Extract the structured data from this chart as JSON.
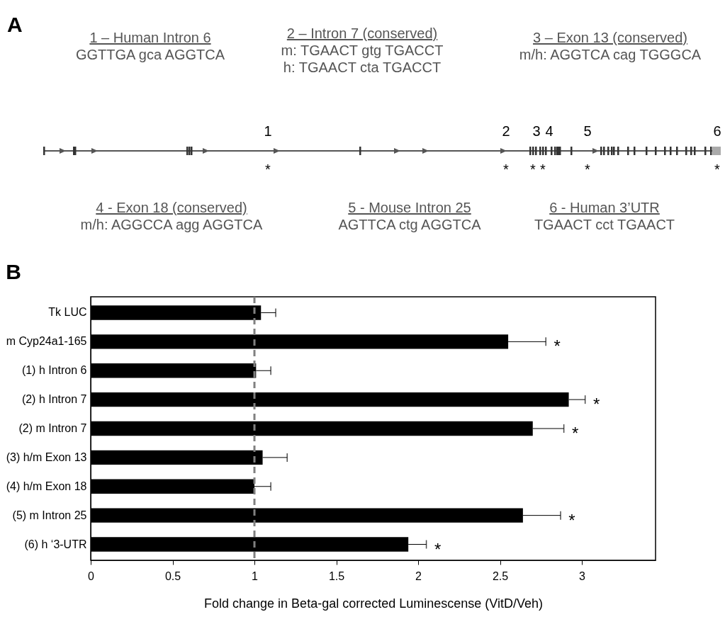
{
  "chart_data": [
    {
      "type": "other",
      "title": "A",
      "annotations": [
        "1 – Human Intron 6\nGGTTGA gca AGGTCA",
        "2 – Intron 7 (conserved)\nm: TGAACT gtg TGACCT\nh: TGAACT cta TGACCT",
        "3 – Exon 13 (conserved)\nm/h: AGGTCA cag TGGGCA",
        "4 - Exon 18 (conserved)\nm/h: AGGCCA agg AGGTCA",
        "5 - Mouse Intron 25\nAGTTCA ctg AGGTCA",
        "6 - Human 3’UTR\nTGAACT cct TGAACT",
        "1",
        "2",
        "3",
        "4",
        "5",
        "6",
        "*",
        "*",
        "*",
        "*",
        "*",
        "*"
      ]
    },
    {
      "type": "bar",
      "orientation": "horizontal",
      "title": "B",
      "xlabel": "Fold change in Beta-gal corrected Luminescense (VitD/Veh)",
      "categories": [
        "Tk LUC",
        "m Cyp24a1-165",
        "(1) h Intron 6",
        "(2) h Intron 7",
        "(2) m Intron 7",
        "(3) h/m Exon 13",
        "(4) h/m Exon 18",
        "(5) m Intron 25",
        "(6) h ‘3-UTR"
      ],
      "values": [
        1.04,
        2.55,
        1.01,
        2.92,
        2.7,
        1.05,
        1.0,
        2.64,
        1.94
      ],
      "color": "#000000",
      "errors": [
        [
          1.04,
          1.13
        ],
        [
          2.55,
          2.78
        ],
        [
          1.01,
          1.1
        ],
        [
          2.92,
          3.02
        ],
        [
          2.7,
          2.89
        ],
        [
          1.05,
          1.2
        ],
        [
          1.0,
          1.1
        ],
        [
          2.64,
          2.87
        ],
        [
          1.94,
          2.05
        ]
      ],
      "xlim": [
        0,
        3.45
      ],
      "xticks": [
        0,
        0.5,
        1,
        1.5,
        2,
        2.5,
        3
      ],
      "ref_lines": [
        {
          "axis": "x",
          "value": 1,
          "color": "#808080",
          "line_style": "dashed"
        }
      ],
      "annotations": [
        {
          "text": "*",
          "x": 2.78,
          "y": "m Cyp24a1-165"
        },
        {
          "text": "*",
          "x": 3.02,
          "y": "(2) h Intron 7"
        },
        {
          "text": "*",
          "x": 2.89,
          "y": "(2) m Intron 7"
        },
        {
          "text": "*",
          "x": 2.87,
          "y": "(5) m Intron 25"
        },
        {
          "text": "*",
          "x": 2.05,
          "y": "(6) h ‘3-UTR"
        }
      ]
    }
  ]
}
